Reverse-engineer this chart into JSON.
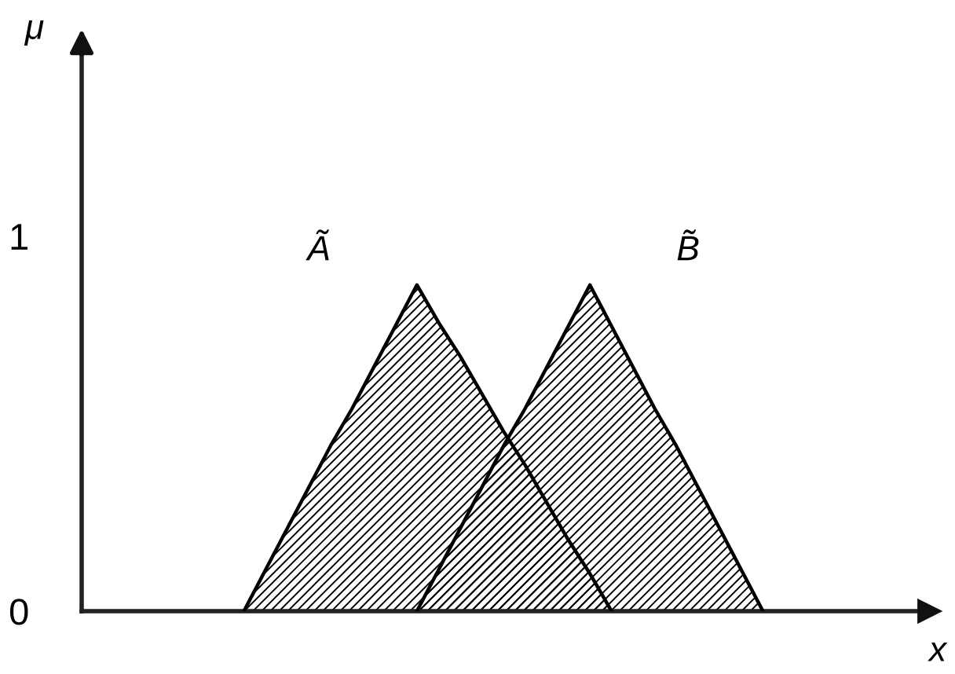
{
  "chart_data": {
    "type": "area",
    "categories": [
      null,
      null,
      null,
      null,
      null,
      null,
      null,
      null,
      null,
      null,
      null,
      null,
      null,
      null,
      null,
      null,
      null,
      null,
      null,
      null,
      null,
      null,
      null,
      null,
      null,
      null,
      null,
      null,
      null,
      null,
      null,
      null,
      null,
      null,
      null,
      null,
      null,
      null,
      null
    ],
    "series": [
      {
        "name": "Ã",
        "color": "#000000",
        "values": [
          null,
          null,
          null,
          null,
          null,
          null,
          null,
          0,
          0.11,
          0.22,
          0.33,
          0.44,
          0.54,
          0.65,
          0.76,
          0.87,
          0.77,
          0.68,
          0.58,
          0.48,
          0.39,
          0.29,
          0.19,
          0.1,
          0,
          null,
          null,
          null,
          null,
          null,
          null,
          null,
          null,
          null,
          null,
          null,
          null,
          null,
          null
        ]
      },
      {
        "name": "B̃",
        "color": "#000000",
        "values": [
          null,
          null,
          null,
          null,
          null,
          null,
          null,
          null,
          null,
          null,
          null,
          null,
          null,
          null,
          null,
          0,
          0.11,
          0.22,
          0.33,
          0.44,
          0.54,
          0.65,
          0.76,
          0.87,
          0.76,
          0.65,
          0.54,
          0.44,
          0.33,
          0.22,
          0.11,
          0,
          null,
          null,
          null,
          null,
          null,
          null,
          null
        ]
      }
    ],
    "xlabel": "x",
    "ylabel": "μ",
    "ylim": [
      0,
      1.5
    ],
    "yticks": [
      0,
      1
    ],
    "tick_labels": "y"
  }
}
